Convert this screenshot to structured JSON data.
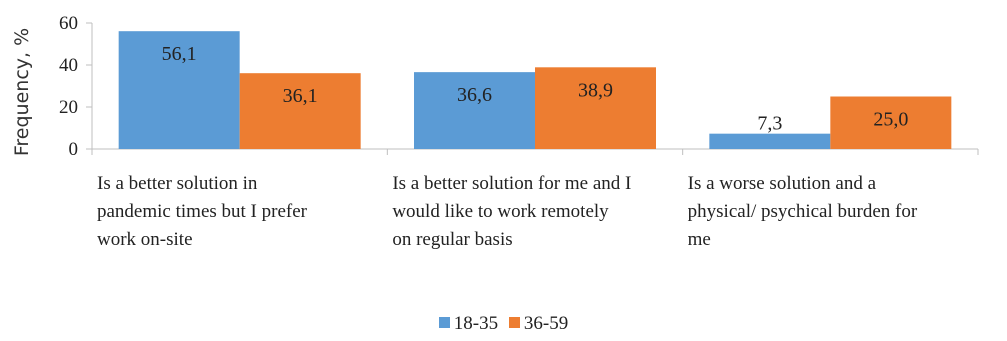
{
  "chart_data": {
    "type": "bar",
    "ylabel": "Frequency, %",
    "ylim": [
      0,
      60
    ],
    "yticks": [
      0,
      20,
      40,
      60
    ],
    "categories": [
      "Is a better solution in pandemic times but I prefer work on-site",
      "Is a better solution for me and I would like to work remotely on regular basis",
      "Is a worse solution and a physical/ psychical burden for me"
    ],
    "category_lines": [
      [
        "Is a better solution in",
        "pandemic times but I prefer",
        "work on-site"
      ],
      [
        "Is a better solution for me and I",
        "would like to work remotely",
        "on regular basis"
      ],
      [
        "Is a worse solution and a",
        "physical/ psychical burden for",
        "me"
      ]
    ],
    "series": [
      {
        "name": "18-35",
        "color": "#5b9bd5",
        "values": [
          56.1,
          36.6,
          7.3
        ],
        "labels": [
          "56,1",
          "36,6",
          "7,3"
        ]
      },
      {
        "name": "36-59",
        "color": "#ed7d31",
        "values": [
          36.1,
          38.9,
          25.0
        ],
        "labels": [
          "36,1",
          "38,9",
          "25,0"
        ]
      }
    ],
    "grid": false,
    "legend_position": "bottom"
  }
}
